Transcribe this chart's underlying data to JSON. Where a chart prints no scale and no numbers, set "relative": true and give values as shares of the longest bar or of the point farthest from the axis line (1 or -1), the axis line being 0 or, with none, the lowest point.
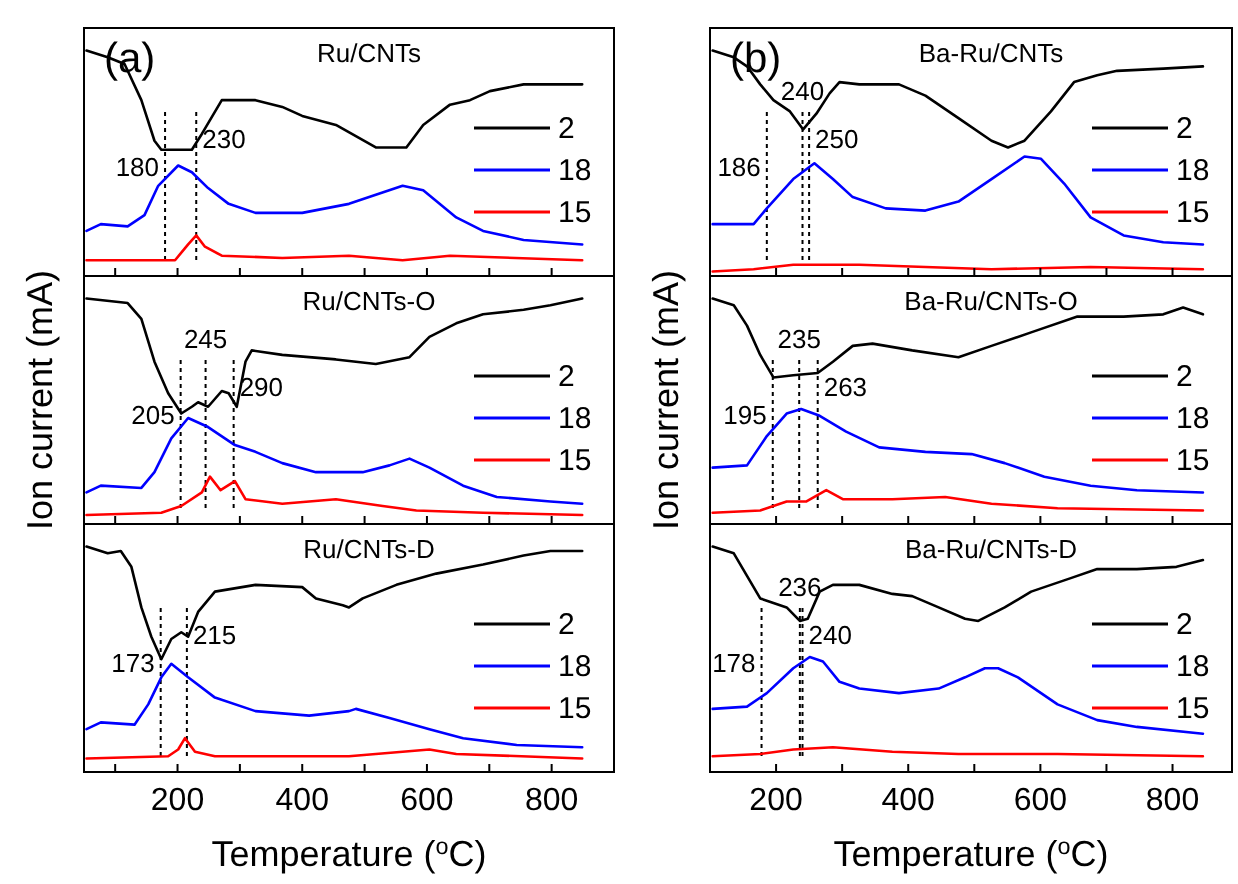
{
  "chart_data": [
    {
      "type": "line",
      "title": "Ru/CNTs",
      "annotations": [
        "(a)"
      ],
      "relative": true,
      "legend": "right",
      "tick_labels": false,
      "xlim": [
        50,
        900
      ],
      "xticks": [
        {
          "value": 100,
          "label": null
        },
        {
          "value": 200,
          "label": null
        },
        {
          "value": 300,
          "label": null
        },
        {
          "value": 400,
          "label": null
        },
        {
          "value": 500,
          "label": null
        },
        {
          "value": 600,
          "label": null
        },
        {
          "value": 700,
          "label": null
        },
        {
          "value": 800,
          "label": null
        }
      ],
      "ref_lines": [
        {
          "axis": "x",
          "value": 180,
          "label": "180"
        },
        {
          "axis": "x",
          "value": 230,
          "label": "230"
        }
      ],
      "series": [
        {
          "name": "2",
          "color": "#000000",
          "x": [
            54,
            88,
            115,
            142,
            163,
            174,
            223,
            239,
            271,
            325,
            368,
            400,
            454,
            518,
            567,
            594,
            637,
            669,
            701,
            755,
            849
          ],
          "values": [
            1,
            0.97,
            0.94,
            0.78,
            0.6,
            0.56,
            0.56,
            0.63,
            0.78,
            0.78,
            0.75,
            0.71,
            0.67,
            0.57,
            0.57,
            0.67,
            0.76,
            0.78,
            0.82,
            0.85,
            0.85
          ]
        },
        {
          "name": "18",
          "color": "#0000ff",
          "x": [
            54,
            77,
            120,
            147,
            169,
            201,
            223,
            249,
            282,
            325,
            400,
            475,
            518,
            561,
            594,
            647,
            690,
            755,
            849
          ],
          "values": [
            0.2,
            0.23,
            0.22,
            0.27,
            0.4,
            0.49,
            0.46,
            0.39,
            0.32,
            0.28,
            0.28,
            0.32,
            0.36,
            0.4,
            0.38,
            0.26,
            0.2,
            0.16,
            0.14
          ]
        },
        {
          "name": "15",
          "color": "#ff0000",
          "x": [
            54,
            196,
            217,
            230,
            244,
            271,
            368,
            475,
            561,
            637,
            849
          ],
          "values": [
            0.07,
            0.07,
            0.14,
            0.18,
            0.13,
            0.09,
            0.08,
            0.09,
            0.07,
            0.09,
            0.07
          ]
        }
      ]
    },
    {
      "type": "line",
      "title": "Ru/CNTs-O",
      "ylabel": "Ion current (mA)",
      "relative": true,
      "legend": "right",
      "tick_labels": false,
      "xlim": [
        50,
        900
      ],
      "xticks": [
        {
          "value": 100,
          "label": null
        },
        {
          "value": 200,
          "label": null
        },
        {
          "value": 300,
          "label": null
        },
        {
          "value": 400,
          "label": null
        },
        {
          "value": 500,
          "label": null
        },
        {
          "value": 600,
          "label": null
        },
        {
          "value": 700,
          "label": null
        },
        {
          "value": 800,
          "label": null
        }
      ],
      "ref_lines": [
        {
          "axis": "x",
          "value": 205,
          "label": "205"
        },
        {
          "axis": "x",
          "value": 245,
          "label": "245"
        },
        {
          "axis": "x",
          "value": 290,
          "label": "290"
        }
      ],
      "series": [
        {
          "name": "2",
          "color": "#000000",
          "x": [
            54,
            120,
            142,
            163,
            185,
            206,
            223,
            233,
            249,
            271,
            282,
            295,
            309,
            319,
            368,
            454,
            518,
            572,
            604,
            647,
            690,
            755,
            798,
            849
          ],
          "values": [
            1,
            0.98,
            0.91,
            0.72,
            0.58,
            0.49,
            0.52,
            0.54,
            0.52,
            0.59,
            0.58,
            0.52,
            0.72,
            0.77,
            0.75,
            0.73,
            0.71,
            0.74,
            0.83,
            0.89,
            0.93,
            0.95,
            0.97,
            1
          ]
        },
        {
          "name": "18",
          "color": "#0000ff",
          "x": [
            54,
            77,
            142,
            163,
            190,
            217,
            249,
            292,
            325,
            368,
            422,
            497,
            540,
            572,
            604,
            658,
            712,
            798,
            849
          ],
          "values": [
            0.14,
            0.17,
            0.16,
            0.23,
            0.38,
            0.47,
            0.43,
            0.35,
            0.32,
            0.27,
            0.23,
            0.23,
            0.26,
            0.29,
            0.25,
            0.17,
            0.12,
            0.1,
            0.09
          ]
        },
        {
          "name": "15",
          "color": "#ff0000",
          "x": [
            54,
            174,
            206,
            239,
            252,
            269,
            292,
            309,
            368,
            454,
            529,
            583,
            690,
            849
          ],
          "values": [
            0.04,
            0.05,
            0.08,
            0.14,
            0.21,
            0.15,
            0.19,
            0.11,
            0.09,
            0.11,
            0.08,
            0.06,
            0.05,
            0.04
          ]
        }
      ]
    },
    {
      "type": "line",
      "title": "Ru/CNTs-D",
      "xlabel": "Temperature ($^{o}$C)",
      "relative": true,
      "legend": "right",
      "tick_labels": "x",
      "xlim": [
        50,
        900
      ],
      "xticks": [
        {
          "value": 100,
          "label": null
        },
        200,
        {
          "value": 300,
          "label": null
        },
        400,
        {
          "value": 500,
          "label": null
        },
        600,
        {
          "value": 700,
          "label": null
        },
        800
      ],
      "ref_lines": [
        {
          "axis": "x",
          "value": 173,
          "label": "173"
        },
        {
          "axis": "x",
          "value": 215,
          "label": "215"
        }
      ],
      "series": [
        {
          "name": "2",
          "color": "#000000",
          "x": [
            54,
            88,
            109,
            126,
            142,
            158,
            174,
            190,
            206,
            217,
            233,
            260,
            325,
            400,
            422,
            465,
            475,
            497,
            551,
            615,
            690,
            755,
            798,
            849
          ],
          "values": [
            1,
            0.97,
            0.98,
            0.91,
            0.73,
            0.6,
            0.5,
            0.59,
            0.62,
            0.6,
            0.71,
            0.8,
            0.83,
            0.82,
            0.77,
            0.74,
            0.73,
            0.77,
            0.83,
            0.88,
            0.92,
            0.96,
            0.98,
            0.98
          ]
        },
        {
          "name": "18",
          "color": "#0000ff",
          "x": [
            54,
            77,
            131,
            153,
            174,
            190,
            217,
            260,
            325,
            411,
            475,
            486,
            540,
            604,
            658,
            744,
            849
          ],
          "values": [
            0.19,
            0.22,
            0.21,
            0.3,
            0.42,
            0.48,
            0.42,
            0.33,
            0.27,
            0.25,
            0.27,
            0.28,
            0.24,
            0.19,
            0.15,
            0.12,
            0.11
          ]
        },
        {
          "name": "15",
          "color": "#ff0000",
          "x": [
            54,
            185,
            201,
            212,
            228,
            260,
            475,
            604,
            647,
            849
          ],
          "values": [
            0.06,
            0.07,
            0.1,
            0.15,
            0.09,
            0.07,
            0.07,
            0.1,
            0.08,
            0.06
          ]
        }
      ]
    },
    {
      "type": "line",
      "title": "Ba-Ru/CNTs",
      "annotations": [
        "(b)"
      ],
      "relative": true,
      "legend": "right",
      "tick_labels": false,
      "xlim": [
        100,
        890
      ],
      "xticks": [
        {
          "value": 200,
          "label": null
        },
        {
          "value": 300,
          "label": null
        },
        {
          "value": 400,
          "label": null
        },
        {
          "value": 500,
          "label": null
        },
        {
          "value": 600,
          "label": null
        },
        {
          "value": 700,
          "label": null
        },
        {
          "value": 800,
          "label": null
        }
      ],
      "ref_lines": [
        {
          "axis": "x",
          "value": 186,
          "label": "186"
        },
        {
          "axis": "x",
          "value": 240,
          "label": "240"
        },
        {
          "axis": "x",
          "value": 250,
          "label": "250"
        }
      ],
      "series": [
        {
          "name": "2",
          "color": "#000000",
          "x": [
            104,
            136,
            156,
            176,
            196,
            221,
            241,
            261,
            281,
            296,
            326,
            386,
            426,
            476,
            526,
            551,
            576,
            616,
            651,
            686,
            716,
            786,
            846
          ],
          "values": [
            1,
            0.97,
            0.93,
            0.85,
            0.78,
            0.73,
            0.65,
            0.72,
            0.81,
            0.86,
            0.85,
            0.85,
            0.8,
            0.7,
            0.6,
            0.57,
            0.6,
            0.73,
            0.86,
            0.89,
            0.91,
            0.92,
            0.93
          ]
        },
        {
          "name": "18",
          "color": "#0000ff",
          "x": [
            104,
            166,
            186,
            226,
            258,
            286,
            316,
            366,
            426,
            476,
            526,
            576,
            601,
            636,
            676,
            726,
            786,
            846
          ],
          "values": [
            0.23,
            0.23,
            0.3,
            0.43,
            0.5,
            0.43,
            0.35,
            0.3,
            0.29,
            0.33,
            0.43,
            0.53,
            0.52,
            0.41,
            0.26,
            0.18,
            0.15,
            0.14
          ]
        },
        {
          "name": "15",
          "color": "#ff0000",
          "x": [
            104,
            166,
            226,
            326,
            426,
            526,
            676,
            846
          ],
          "values": [
            0.02,
            0.03,
            0.05,
            0.05,
            0.04,
            0.03,
            0.04,
            0.03
          ]
        }
      ]
    },
    {
      "type": "line",
      "title": "Ba-Ru/CNTs-O",
      "ylabel": "Ion current (mA)",
      "relative": true,
      "legend": "right",
      "tick_labels": false,
      "xlim": [
        100,
        890
      ],
      "xticks": [
        {
          "value": 200,
          "label": null
        },
        {
          "value": 300,
          "label": null
        },
        {
          "value": 400,
          "label": null
        },
        {
          "value": 500,
          "label": null
        },
        {
          "value": 600,
          "label": null
        },
        {
          "value": 700,
          "label": null
        },
        {
          "value": 800,
          "label": null
        }
      ],
      "ref_lines": [
        {
          "axis": "x",
          "value": 195,
          "label": "195"
        },
        {
          "axis": "x",
          "value": 235,
          "label": "235"
        },
        {
          "axis": "x",
          "value": 263,
          "label": "263"
        }
      ],
      "series": [
        {
          "name": "2",
          "color": "#000000",
          "x": [
            104,
            136,
            156,
            176,
            196,
            226,
            263,
            286,
            316,
            346,
            406,
            476,
            526,
            586,
            656,
            726,
            786,
            816,
            846
          ],
          "values": [
            1,
            0.97,
            0.88,
            0.75,
            0.65,
            0.66,
            0.67,
            0.72,
            0.79,
            0.8,
            0.77,
            0.74,
            0.79,
            0.85,
            0.92,
            0.92,
            0.93,
            0.96,
            0.93
          ]
        },
        {
          "name": "18",
          "color": "#0000ff",
          "x": [
            104,
            156,
            186,
            216,
            238,
            266,
            306,
            356,
            426,
            496,
            546,
            606,
            676,
            746,
            846
          ],
          "values": [
            0.25,
            0.26,
            0.39,
            0.49,
            0.51,
            0.48,
            0.41,
            0.34,
            0.32,
            0.31,
            0.27,
            0.21,
            0.17,
            0.15,
            0.14
          ]
        },
        {
          "name": "15",
          "color": "#ff0000",
          "x": [
            104,
            176,
            216,
            246,
            276,
            301,
            376,
            456,
            526,
            626,
            846
          ],
          "values": [
            0.05,
            0.06,
            0.1,
            0.1,
            0.15,
            0.11,
            0.11,
            0.12,
            0.09,
            0.07,
            0.06
          ]
        }
      ]
    },
    {
      "type": "line",
      "title": "Ba-Ru/CNTs-D",
      "xlabel": "Temperature ($^{o}$C)",
      "relative": true,
      "legend": "right",
      "tick_labels": "x",
      "xlim": [
        100,
        890
      ],
      "xticks": [
        200,
        {
          "value": 300,
          "label": null
        },
        400,
        {
          "value": 500,
          "label": null
        },
        600,
        {
          "value": 700,
          "label": null
        },
        800
      ],
      "ref_lines": [
        {
          "axis": "x",
          "value": 178,
          "label": "178"
        },
        {
          "axis": "x",
          "value": 236,
          "label": "236"
        },
        {
          "axis": "x",
          "value": 240,
          "label": "240"
        }
      ],
      "series": [
        {
          "name": "2",
          "color": "#000000",
          "x": [
            104,
            136,
            156,
            176,
            196,
            216,
            236,
            248,
            266,
            286,
            326,
            376,
            406,
            446,
            486,
            506,
            546,
            586,
            646,
            686,
            746,
            806,
            846
          ],
          "values": [
            1,
            0.97,
            0.87,
            0.77,
            0.75,
            0.73,
            0.67,
            0.68,
            0.8,
            0.83,
            0.83,
            0.79,
            0.78,
            0.73,
            0.68,
            0.67,
            0.73,
            0.8,
            0.86,
            0.9,
            0.9,
            0.91,
            0.94
          ]
        },
        {
          "name": "18",
          "color": "#0000ff",
          "x": [
            104,
            156,
            186,
            226,
            251,
            271,
            296,
            326,
            386,
            446,
            486,
            516,
            536,
            566,
            626,
            686,
            746,
            846
          ],
          "values": [
            0.28,
            0.29,
            0.35,
            0.46,
            0.51,
            0.49,
            0.4,
            0.37,
            0.35,
            0.37,
            0.42,
            0.46,
            0.46,
            0.42,
            0.3,
            0.23,
            0.2,
            0.17
          ]
        },
        {
          "name": "15",
          "color": "#ff0000",
          "x": [
            104,
            176,
            226,
            286,
            376,
            476,
            626,
            846
          ],
          "values": [
            0.07,
            0.08,
            0.1,
            0.11,
            0.09,
            0.08,
            0.08,
            0.07
          ]
        }
      ]
    }
  ]
}
